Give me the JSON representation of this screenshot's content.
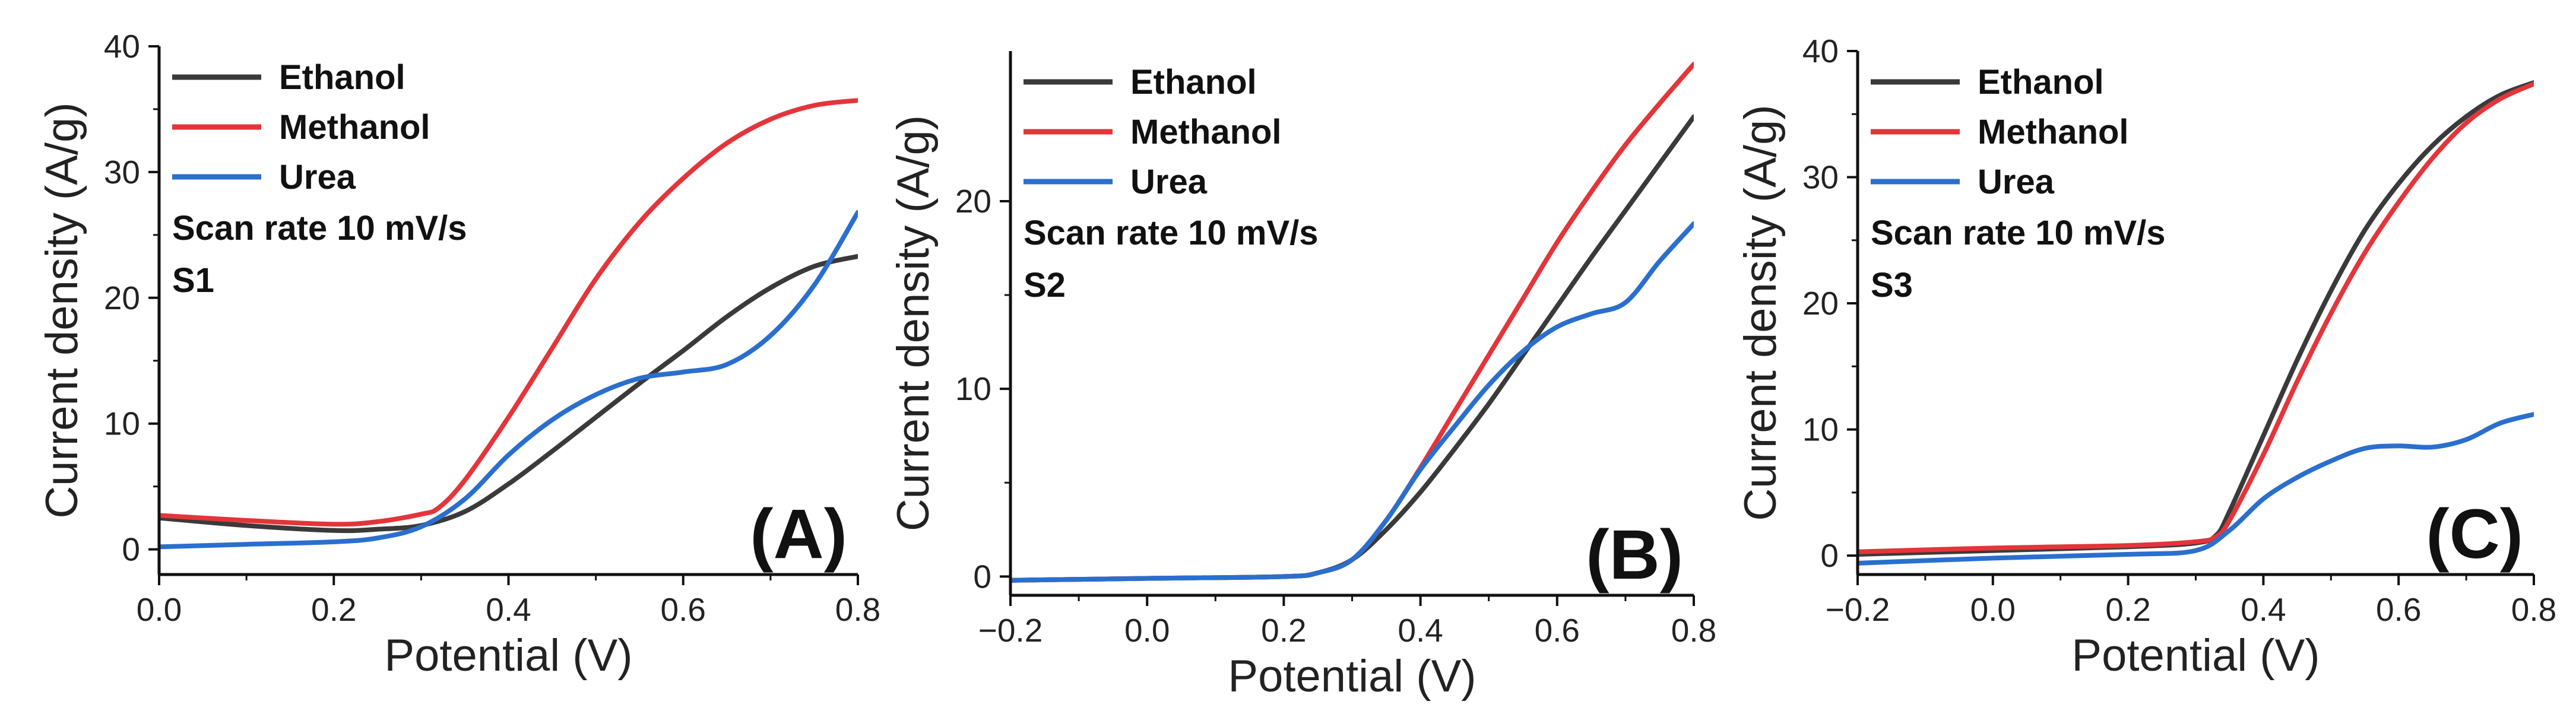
{
  "chart_data": [
    {
      "type": "line",
      "panel_label": "(A)",
      "xlabel": "Potential (V)",
      "ylabel": "Current density (A/g)",
      "xlim": [
        0.0,
        0.8
      ],
      "ylim": [
        -2,
        40
      ],
      "xticks": [
        0.0,
        0.2,
        0.4,
        0.6,
        0.8
      ],
      "xtick_labels": [
        "0.0",
        "0.2",
        "0.4",
        "0.6",
        "0.8"
      ],
      "yticks": [
        0,
        10,
        20,
        30,
        40
      ],
      "ytick_labels": [
        "0",
        "10",
        "20",
        "30",
        "40"
      ],
      "notes": [
        "Scan rate 10 mV/s",
        "S1"
      ],
      "legend_position": "top-left",
      "series": [
        {
          "name": "Ethanol",
          "color": "#3a3a3a",
          "points": [
            [
              0.0,
              2.5
            ],
            [
              0.1,
              1.9
            ],
            [
              0.2,
              1.5
            ],
            [
              0.25,
              1.6
            ],
            [
              0.3,
              1.9
            ],
            [
              0.35,
              3.0
            ],
            [
              0.4,
              5.2
            ],
            [
              0.45,
              7.8
            ],
            [
              0.5,
              10.5
            ],
            [
              0.55,
              13.2
            ],
            [
              0.6,
              15.8
            ],
            [
              0.65,
              18.5
            ],
            [
              0.7,
              20.8
            ],
            [
              0.75,
              22.5
            ],
            [
              0.8,
              23.3
            ]
          ]
        },
        {
          "name": "Methanol",
          "color": "#e3353a",
          "points": [
            [
              0.0,
              2.7
            ],
            [
              0.1,
              2.3
            ],
            [
              0.2,
              2.0
            ],
            [
              0.25,
              2.2
            ],
            [
              0.3,
              2.8
            ],
            [
              0.32,
              3.3
            ],
            [
              0.35,
              5.5
            ],
            [
              0.4,
              10.5
            ],
            [
              0.45,
              16.0
            ],
            [
              0.5,
              21.5
            ],
            [
              0.55,
              26.0
            ],
            [
              0.6,
              29.5
            ],
            [
              0.65,
              32.3
            ],
            [
              0.7,
              34.2
            ],
            [
              0.75,
              35.3
            ],
            [
              0.8,
              35.7
            ]
          ]
        },
        {
          "name": "Urea",
          "color": "#2a6fce",
          "points": [
            [
              0.0,
              0.2
            ],
            [
              0.1,
              0.4
            ],
            [
              0.2,
              0.6
            ],
            [
              0.25,
              0.9
            ],
            [
              0.3,
              1.8
            ],
            [
              0.35,
              4.0
            ],
            [
              0.4,
              7.5
            ],
            [
              0.45,
              10.3
            ],
            [
              0.5,
              12.3
            ],
            [
              0.55,
              13.6
            ],
            [
              0.6,
              14.1
            ],
            [
              0.65,
              14.7
            ],
            [
              0.7,
              17.0
            ],
            [
              0.75,
              21.0
            ],
            [
              0.8,
              26.8
            ]
          ]
        }
      ]
    },
    {
      "type": "line",
      "panel_label": "(B)",
      "xlabel": "Potential (V)",
      "ylabel": "Current density (A/g)",
      "xlim": [
        -0.2,
        0.8
      ],
      "ylim": [
        -1,
        28
      ],
      "xticks": [
        -0.2,
        0.0,
        0.2,
        0.4,
        0.6,
        0.8
      ],
      "xtick_labels": [
        "−0.2",
        "0.0",
        "0.2",
        "0.4",
        "0.6",
        "0.8"
      ],
      "yticks": [
        0,
        10,
        20
      ],
      "ytick_labels": [
        "0",
        "10",
        "20"
      ],
      "notes": [
        "Scan rate 10 mV/s",
        "S2"
      ],
      "legend_position": "top-left",
      "series": [
        {
          "name": "Ethanol",
          "color": "#3a3a3a",
          "points": [
            [
              -0.2,
              -0.2
            ],
            [
              0.0,
              -0.1
            ],
            [
              0.2,
              0.0
            ],
            [
              0.25,
              0.2
            ],
            [
              0.3,
              0.9
            ],
            [
              0.35,
              2.5
            ],
            [
              0.4,
              4.5
            ],
            [
              0.45,
              6.8
            ],
            [
              0.5,
              9.2
            ],
            [
              0.55,
              11.8
            ],
            [
              0.6,
              14.4
            ],
            [
              0.65,
              17.0
            ],
            [
              0.7,
              19.5
            ],
            [
              0.75,
              22.0
            ],
            [
              0.8,
              24.5
            ]
          ]
        },
        {
          "name": "Methanol",
          "color": "#e3353a",
          "points": [
            [
              -0.2,
              -0.2
            ],
            [
              0.0,
              -0.1
            ],
            [
              0.2,
              0.0
            ],
            [
              0.25,
              0.2
            ],
            [
              0.3,
              0.9
            ],
            [
              0.35,
              3.0
            ],
            [
              0.4,
              5.8
            ],
            [
              0.45,
              8.8
            ],
            [
              0.5,
              11.8
            ],
            [
              0.55,
              14.8
            ],
            [
              0.6,
              17.8
            ],
            [
              0.65,
              20.5
            ],
            [
              0.7,
              23.0
            ],
            [
              0.75,
              25.2
            ],
            [
              0.8,
              27.3
            ]
          ]
        },
        {
          "name": "Urea",
          "color": "#2a6fce",
          "points": [
            [
              -0.2,
              -0.2
            ],
            [
              0.0,
              -0.1
            ],
            [
              0.2,
              0.0
            ],
            [
              0.25,
              0.2
            ],
            [
              0.3,
              0.9
            ],
            [
              0.35,
              3.0
            ],
            [
              0.4,
              5.7
            ],
            [
              0.45,
              8.0
            ],
            [
              0.5,
              10.2
            ],
            [
              0.55,
              12.0
            ],
            [
              0.6,
              13.3
            ],
            [
              0.65,
              14.0
            ],
            [
              0.7,
              14.6
            ],
            [
              0.75,
              16.8
            ],
            [
              0.8,
              18.8
            ]
          ]
        }
      ]
    },
    {
      "type": "line",
      "panel_label": "(C)",
      "xlabel": "Potential (V)",
      "ylabel": "Current density (A/g)",
      "xlim": [
        -0.2,
        0.8
      ],
      "ylim": [
        -1.5,
        40
      ],
      "xticks": [
        -0.2,
        0.0,
        0.2,
        0.4,
        0.6,
        0.8
      ],
      "xtick_labels": [
        "−0.2",
        "0.0",
        "0.2",
        "0.4",
        "0.6",
        "0.8"
      ],
      "yticks": [
        0,
        10,
        20,
        30,
        40
      ],
      "ytick_labels": [
        "0",
        "10",
        "20",
        "30",
        "40"
      ],
      "notes": [
        "Scan rate 10 mV/s",
        "S3"
      ],
      "legend_position": "top-left",
      "series": [
        {
          "name": "Ethanol",
          "color": "#3a3a3a",
          "points": [
            [
              -0.2,
              0.1
            ],
            [
              0.0,
              0.4
            ],
            [
              0.2,
              0.7
            ],
            [
              0.3,
              1.0
            ],
            [
              0.33,
              1.6
            ],
            [
              0.35,
              3.5
            ],
            [
              0.4,
              9.5
            ],
            [
              0.45,
              15.5
            ],
            [
              0.5,
              21.0
            ],
            [
              0.55,
              25.8
            ],
            [
              0.6,
              29.5
            ],
            [
              0.65,
              32.5
            ],
            [
              0.7,
              34.8
            ],
            [
              0.75,
              36.5
            ],
            [
              0.8,
              37.5
            ]
          ]
        },
        {
          "name": "Methanol",
          "color": "#e3353a",
          "points": [
            [
              -0.2,
              0.3
            ],
            [
              0.0,
              0.6
            ],
            [
              0.2,
              0.8
            ],
            [
              0.3,
              1.1
            ],
            [
              0.33,
              1.5
            ],
            [
              0.35,
              2.8
            ],
            [
              0.4,
              8.0
            ],
            [
              0.45,
              13.8
            ],
            [
              0.5,
              19.2
            ],
            [
              0.55,
              24.0
            ],
            [
              0.6,
              28.0
            ],
            [
              0.65,
              31.5
            ],
            [
              0.7,
              34.3
            ],
            [
              0.75,
              36.2
            ],
            [
              0.8,
              37.4
            ]
          ]
        },
        {
          "name": "Urea",
          "color": "#2a6fce",
          "points": [
            [
              -0.2,
              -0.6
            ],
            [
              0.0,
              -0.2
            ],
            [
              0.2,
              0.1
            ],
            [
              0.3,
              0.4
            ],
            [
              0.35,
              2.0
            ],
            [
              0.4,
              4.5
            ],
            [
              0.45,
              6.2
            ],
            [
              0.5,
              7.5
            ],
            [
              0.55,
              8.5
            ],
            [
              0.6,
              8.7
            ],
            [
              0.65,
              8.6
            ],
            [
              0.7,
              9.2
            ],
            [
              0.75,
              10.5
            ],
            [
              0.8,
              11.2
            ]
          ]
        }
      ]
    }
  ]
}
